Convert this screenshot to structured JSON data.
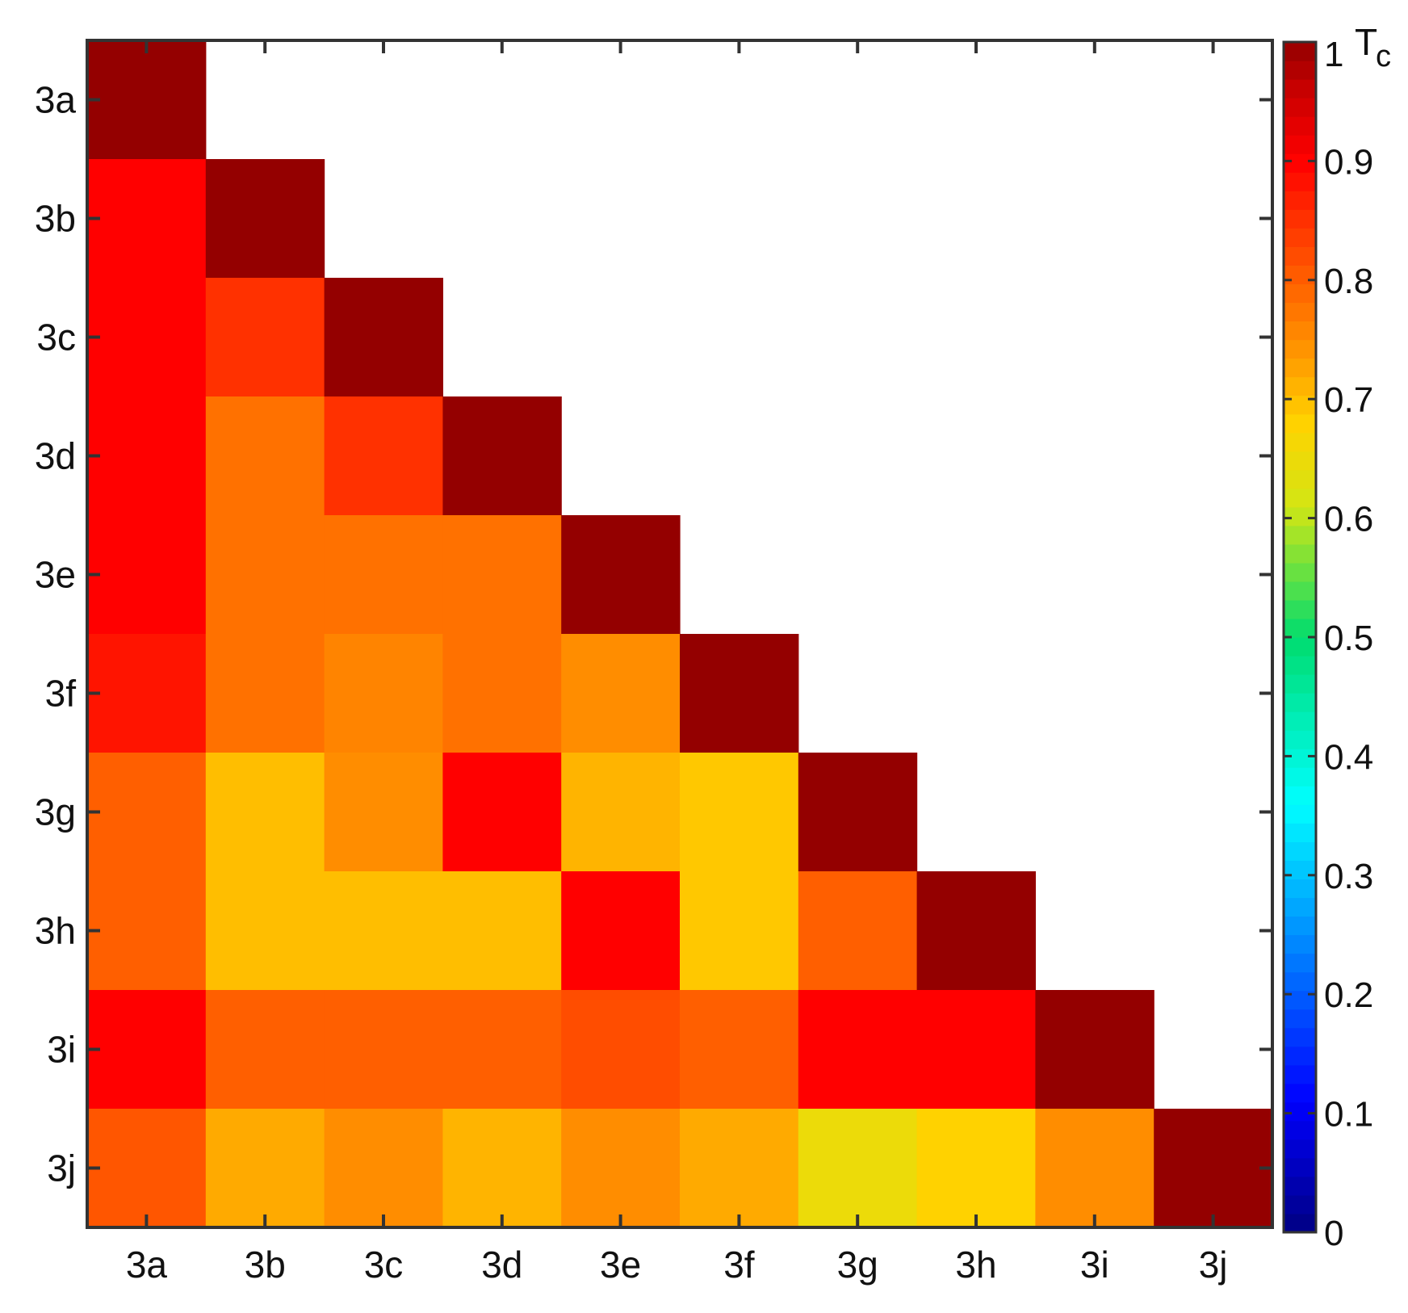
{
  "chart_data": {
    "type": "heatmap",
    "title": "",
    "xlabel": "",
    "ylabel": "",
    "x_categories": [
      "3a",
      "3b",
      "3c",
      "3d",
      "3e",
      "3f",
      "3g",
      "3h",
      "3i",
      "3j"
    ],
    "y_categories": [
      "3a",
      "3b",
      "3c",
      "3d",
      "3e",
      "3f",
      "3g",
      "3h",
      "3i",
      "3j"
    ],
    "matrix_shape": "lower-triangular",
    "values": [
      [
        1.0
      ],
      [
        0.9,
        1.0
      ],
      [
        0.9,
        0.85,
        1.0
      ],
      [
        0.9,
        0.78,
        0.85,
        1.0
      ],
      [
        0.9,
        0.78,
        0.78,
        0.78,
        1.0
      ],
      [
        0.88,
        0.78,
        0.76,
        0.78,
        0.75,
        1.0
      ],
      [
        0.8,
        0.7,
        0.75,
        0.9,
        0.71,
        0.69,
        1.0
      ],
      [
        0.8,
        0.7,
        0.7,
        0.7,
        0.9,
        0.69,
        0.8,
        1.0
      ],
      [
        0.9,
        0.8,
        0.8,
        0.8,
        0.82,
        0.8,
        0.9,
        0.9,
        1.0
      ],
      [
        0.81,
        0.72,
        0.75,
        0.71,
        0.75,
        0.72,
        0.65,
        0.68,
        0.75,
        1.0
      ]
    ],
    "colorbar": {
      "title": "T",
      "title_subscript": "c",
      "range": [
        0,
        1
      ],
      "ticks": [
        "0",
        "0.1",
        "0.2",
        "0.3",
        "0.4",
        "0.5",
        "0.6",
        "0.7",
        "0.8",
        "0.9",
        "1"
      ],
      "colormap": "jet",
      "levels": 64
    },
    "grid": false,
    "legend": "colorbar-right"
  }
}
